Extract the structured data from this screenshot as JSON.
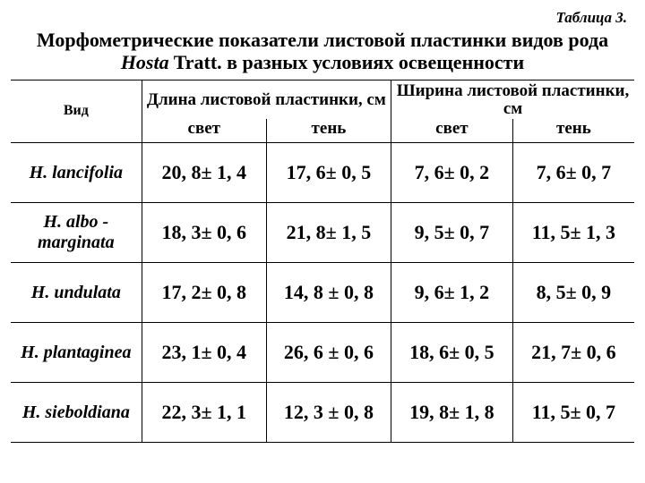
{
  "table_label": "Таблица 3.",
  "title_line1": "Морфометрические показатели листовой пластинки видов рода",
  "title_genus": "Hosta",
  "title_rest": " Tratt. в разных условиях освещенности",
  "header": {
    "species": "Вид",
    "length_group": "Длина листовой пластинки, см",
    "width_group": "Ширина листовой пластинки, см",
    "light": "свет",
    "shade": "тень"
  },
  "rows": [
    {
      "species": "H. lancifolia",
      "len_light": "20, 8± 1, 4",
      "len_shade": "17, 6± 0, 5",
      "wid_light": "7, 6± 0, 2",
      "wid_shade": "7, 6± 0, 7"
    },
    {
      "species": "H. albo - marginata",
      "len_light": "18, 3± 0, 6",
      "len_shade": "21, 8± 1, 5",
      "wid_light": "9, 5± 0, 7",
      "wid_shade": "11, 5± 1, 3"
    },
    {
      "species": "H. undulata",
      "len_light": "17, 2± 0, 8",
      "len_shade": "14, 8 ± 0, 8",
      "wid_light": "9, 6± 1, 2",
      "wid_shade": "8, 5± 0, 9"
    },
    {
      "species": "H. plantaginea",
      "len_light": "23, 1± 0, 4",
      "len_shade": "26, 6 ± 0, 6",
      "wid_light": "18, 6± 0, 5",
      "wid_shade": "21, 7± 0, 6"
    },
    {
      "species": "H. sieboldiana",
      "len_light": "22, 3± 1, 1",
      "len_shade": "12, 3 ± 0, 8",
      "wid_light": "19, 8± 1, 8",
      "wid_shade": "11, 5± 0, 7"
    }
  ]
}
